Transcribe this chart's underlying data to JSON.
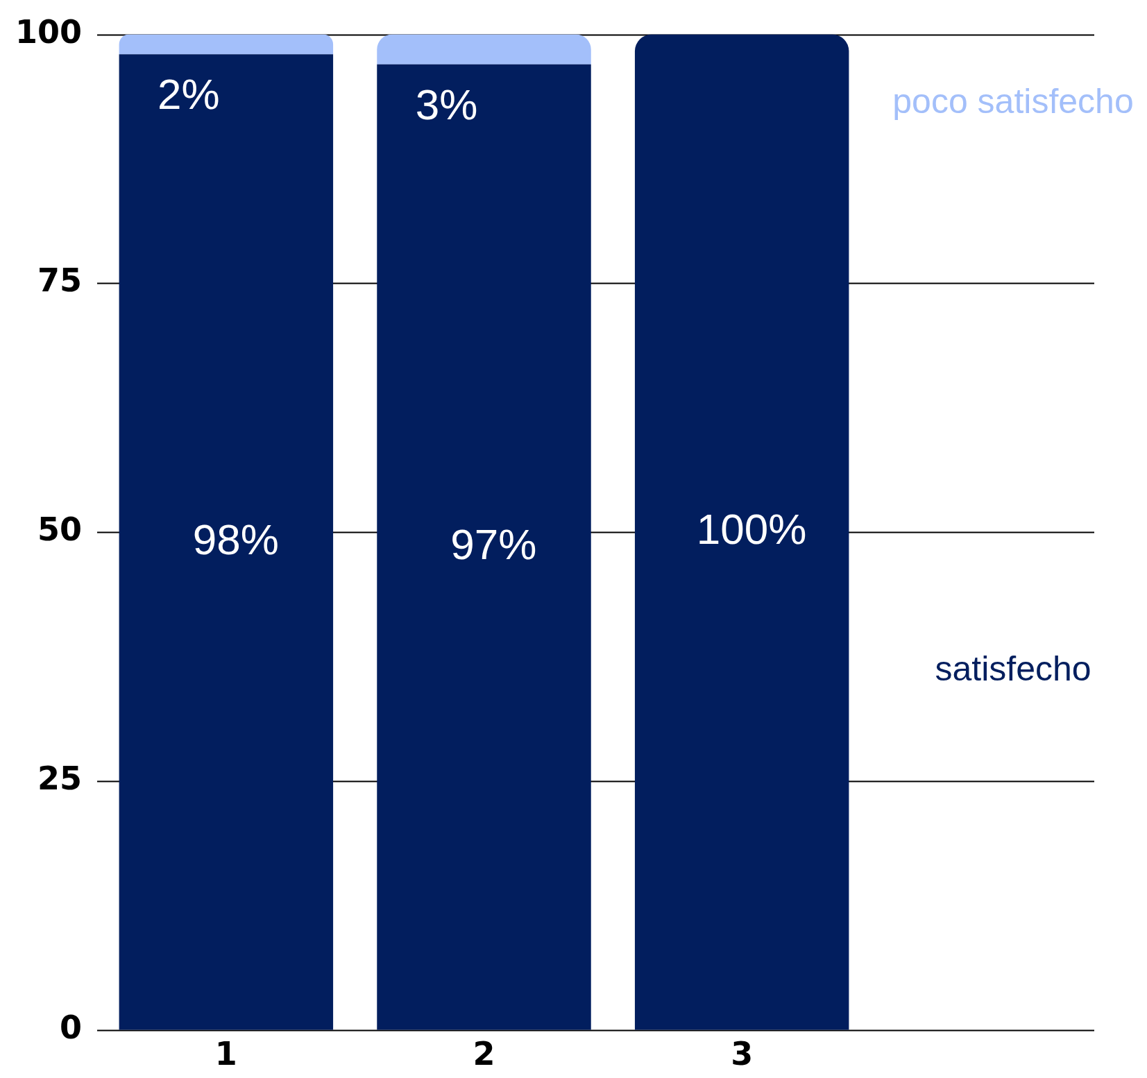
{
  "chart_data": {
    "type": "bar",
    "stacked": true,
    "categories": [
      "1",
      "2",
      "3"
    ],
    "series": [
      {
        "name": "satisfecho",
        "color": "#021e5e",
        "values": [
          98,
          97,
          100
        ],
        "value_labels": [
          "98%",
          "97%",
          "100%"
        ]
      },
      {
        "name": "poco satisfecho",
        "color": "#a3bffa",
        "values": [
          2,
          3,
          0
        ],
        "value_labels": [
          "2%",
          "3%",
          null
        ]
      }
    ],
    "ylim": [
      0,
      100
    ],
    "yticks": [
      0,
      25,
      50,
      75,
      100
    ],
    "grid": "y",
    "legend": "right"
  }
}
